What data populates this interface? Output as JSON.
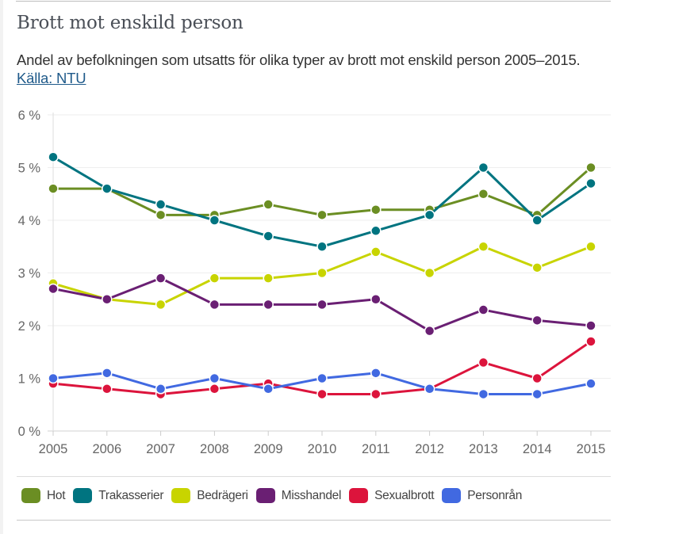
{
  "header": {
    "title": "Brott mot enskild person",
    "subtitle": "Andel av befolkningen som utsatts för olika typer av brott mot enskild person 2005–2015.",
    "source_link": "Källa: NTU"
  },
  "chart_data": {
    "type": "line",
    "title": "Brott mot enskild person",
    "xlabel": "",
    "ylabel": "",
    "x": [
      "2005",
      "2006",
      "2007",
      "2008",
      "2009",
      "2010",
      "2011",
      "2012",
      "2013",
      "2014",
      "2015"
    ],
    "ylim": [
      0,
      6
    ],
    "yticks": [
      0,
      1,
      2,
      3,
      4,
      5,
      6
    ],
    "ytick_labels": [
      "0 %",
      "1 %",
      "2 %",
      "3 %",
      "4 %",
      "5 %",
      "6 %"
    ],
    "grid": true,
    "legend_position": "bottom",
    "series": [
      {
        "name": "Hot",
        "color": "#6b8e23",
        "values": [
          4.6,
          4.6,
          4.1,
          4.1,
          4.3,
          4.1,
          4.2,
          4.2,
          4.5,
          4.1,
          5.0
        ]
      },
      {
        "name": "Trakasserier",
        "color": "#007480",
        "values": [
          5.2,
          4.6,
          4.3,
          4.0,
          3.7,
          3.5,
          3.8,
          4.1,
          5.0,
          4.0,
          4.7
        ]
      },
      {
        "name": "Bedrägeri",
        "color": "#c8d400",
        "values": [
          2.8,
          2.5,
          2.4,
          2.9,
          2.9,
          3.0,
          3.4,
          3.0,
          3.5,
          3.1,
          3.5
        ]
      },
      {
        "name": "Misshandel",
        "color": "#6a1f73",
        "values": [
          2.7,
          2.5,
          2.9,
          2.4,
          2.4,
          2.4,
          2.5,
          1.9,
          2.3,
          2.1,
          2.0
        ]
      },
      {
        "name": "Sexualbrott",
        "color": "#dc143c",
        "values": [
          0.9,
          0.8,
          0.7,
          0.8,
          0.9,
          0.7,
          0.7,
          0.8,
          1.3,
          1.0,
          1.7
        ]
      },
      {
        "name": "Personrån",
        "color": "#4169e1",
        "values": [
          1.0,
          1.1,
          0.8,
          1.0,
          0.8,
          1.0,
          1.1,
          0.8,
          0.7,
          0.7,
          0.9
        ]
      }
    ]
  }
}
